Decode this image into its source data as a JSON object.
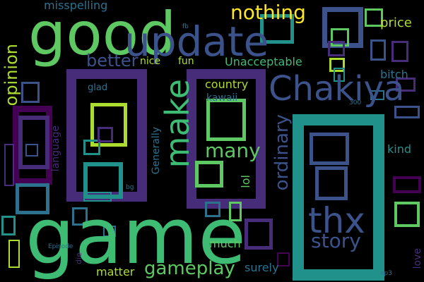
{
  "background": "#000000",
  "palette": [
    "#440154",
    "#472c7a",
    "#3b528b",
    "#2c728e",
    "#21918c",
    "#28ae80",
    "#5ec962",
    "#addc30",
    "#fde725"
  ],
  "words": [
    {
      "text": "game",
      "color": "#3fbc73"
    },
    {
      "text": "good",
      "color": "#5ec962"
    },
    {
      "text": "update",
      "color": "#3b528b"
    },
    {
      "text": "Chakiya",
      "color": "#3b528b"
    },
    {
      "text": "nothing",
      "color": "#fde725"
    },
    {
      "text": "make",
      "color": "#3fbc73"
    },
    {
      "text": "thx",
      "color": "#3b528b"
    },
    {
      "text": "better",
      "color": "#3b528b"
    },
    {
      "text": "opinion",
      "color": "#addc30"
    },
    {
      "text": "many",
      "color": "#5ec962"
    },
    {
      "text": "gameplay",
      "color": "#5ec962"
    },
    {
      "text": "story",
      "color": "#3b528b"
    },
    {
      "text": "ordinary",
      "color": "#3b528b"
    },
    {
      "text": "Unacceptable",
      "color": "#3fbc73"
    },
    {
      "text": "misspelling",
      "color": "#2c728e"
    },
    {
      "text": "price",
      "color": "#addc30"
    },
    {
      "text": "nice",
      "color": "#addc30"
    },
    {
      "text": "fun",
      "color": "#addc30"
    },
    {
      "text": "country",
      "color": "#addc30"
    },
    {
      "text": "kawaii",
      "color": "#2c728e"
    },
    {
      "text": "glad",
      "color": "#2c728e"
    },
    {
      "text": "bitch",
      "color": "#2c728e"
    },
    {
      "text": "kind",
      "color": "#21918c"
    },
    {
      "text": "language",
      "color": "#472c7a"
    },
    {
      "text": "Generally",
      "color": "#2c728e"
    },
    {
      "text": "lol",
      "color": "#5ec962"
    },
    {
      "text": "much",
      "color": "#5ec962"
    },
    {
      "text": "matter",
      "color": "#addc30"
    },
    {
      "text": "surely",
      "color": "#2c728e"
    },
    {
      "text": "love",
      "color": "#472c7a"
    },
    {
      "text": "Episode",
      "color": "#2c728e"
    },
    {
      "text": "die",
      "color": "#472c7a"
    },
    {
      "text": "bg",
      "color": "#2c728e"
    },
    {
      "text": "ep3",
      "color": "#2c728e"
    },
    {
      "text": "fb",
      "color": "#2c728e"
    },
    {
      "text": "300",
      "color": "#2c728e"
    }
  ],
  "boxes": [
    {
      "color": "#472c7a"
    },
    {
      "color": "#addc30"
    },
    {
      "color": "#472c7a"
    },
    {
      "color": "#5ec962"
    },
    {
      "color": "#21918c"
    },
    {
      "color": "#3b528b"
    },
    {
      "color": "#3b528b"
    },
    {
      "color": "#5ec962"
    },
    {
      "color": "#440154"
    },
    {
      "color": "#472c7a"
    },
    {
      "color": "#21918c"
    },
    {
      "color": "#5ec962"
    },
    {
      "color": "#2c728e"
    },
    {
      "color": "#3b528b"
    },
    {
      "color": "#472c7a"
    },
    {
      "color": "#21918c"
    },
    {
      "color": "#5ec962"
    },
    {
      "color": "#3b528b"
    },
    {
      "color": "#472c7a"
    },
    {
      "color": "#21918c"
    },
    {
      "color": "#3b528b"
    },
    {
      "color": "#472c7a"
    },
    {
      "color": "#addc30"
    },
    {
      "color": "#2c728e"
    },
    {
      "color": "#440154"
    },
    {
      "color": "#5ec962"
    },
    {
      "color": "#3b528b"
    },
    {
      "color": "#21918c"
    },
    {
      "color": "#472c7a"
    },
    {
      "color": "#2c728e"
    },
    {
      "color": "#21918c"
    },
    {
      "color": "#472c7a"
    },
    {
      "color": "#addc30"
    },
    {
      "color": "#2c728e"
    },
    {
      "color": "#472c7a"
    },
    {
      "color": "#3b528b"
    },
    {
      "color": "#5ec962"
    },
    {
      "color": "#440154"
    },
    {
      "color": "#21918c"
    },
    {
      "color": "#2c728e"
    }
  ]
}
